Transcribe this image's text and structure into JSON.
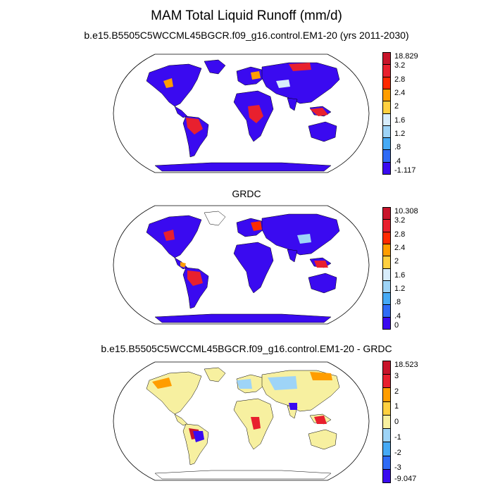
{
  "figure": {
    "title": "MAM Total Liquid Runoff (mm/d)"
  },
  "panels": [
    {
      "title": "b.e15.B5505C5WCCML45BGCR.f09_g16.control.EM1-20 (yrs 2011-2030)",
      "colorbar": {
        "labels": [
          "-1.117",
          ".4",
          ".8",
          "1.2",
          "1.6",
          "2",
          "2.4",
          "2.8",
          "3.2",
          "18.829"
        ],
        "colors": [
          "#3a0af0",
          "#2f6bf5",
          "#46aaf5",
          "#9ed4f7",
          "#d8edfb",
          "#ffd040",
          "#ff9d00",
          "#ff2a00",
          "#e8202e",
          "#c8142a"
        ]
      },
      "land_color": "#3a0af0"
    },
    {
      "title": "GRDC",
      "colorbar": {
        "labels": [
          "0",
          ".4",
          ".8",
          "1.2",
          "1.6",
          "2",
          "2.4",
          "2.8",
          "3.2",
          "10.308"
        ],
        "colors": [
          "#3a0af0",
          "#2f6bf5",
          "#46aaf5",
          "#9ed4f7",
          "#d8edfb",
          "#ffd040",
          "#ff9d00",
          "#ff2a00",
          "#e8202e",
          "#c8142a"
        ]
      },
      "land_color": "#3a0af0"
    },
    {
      "title": "b.e15.B5505C5WCCML45BGCR.f09_g16.control.EM1-20 - GRDC",
      "colorbar": {
        "labels": [
          "-9.047",
          "-3",
          "-2",
          "-1",
          "0",
          "1",
          "2",
          "3",
          "18.523"
        ],
        "colors": [
          "#3a0af0",
          "#2f6bf5",
          "#46aaf5",
          "#9ed4f7",
          "#f7f0a0",
          "#ffd040",
          "#ff9d00",
          "#e8202e",
          "#c8142a"
        ]
      },
      "land_color": "#f7f0a0"
    }
  ]
}
